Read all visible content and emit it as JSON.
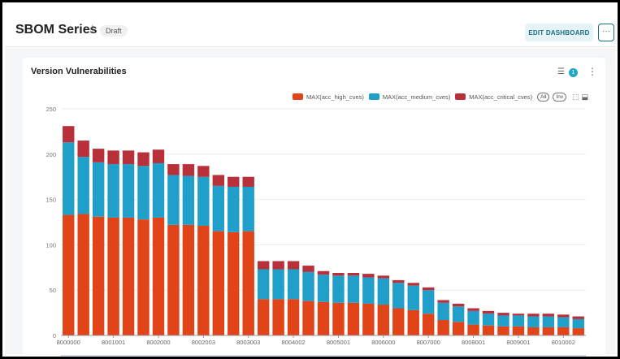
{
  "header": {
    "title": "SBOM Series",
    "star_icon": "star-icon",
    "badge": "Draft",
    "edit_label": "EDIT DASHBOARD",
    "more_label": "···"
  },
  "card": {
    "title": "Version Vulnerabilities",
    "filter_icon": "filter-icon",
    "filter_count": "1",
    "kebab": "⋮"
  },
  "legend": {
    "items": [
      {
        "label": "MAX(acc_high_cves)",
        "color": "#e04418"
      },
      {
        "label": "MAX(acc_medium_cves)",
        "color": "#1f9fc9"
      },
      {
        "label": "MAX(acc_critical_cves)",
        "color": "#b8303a"
      }
    ],
    "all_label": "All",
    "inv_label": "Inv"
  },
  "chart_data": {
    "type": "bar",
    "stacked": true,
    "ylim": [
      0,
      250
    ],
    "yticks": [
      0,
      50,
      100,
      150,
      200,
      250
    ],
    "xticks": [
      "8000000",
      "8001001",
      "8002000",
      "8002003",
      "8003003",
      "8004002",
      "8005001",
      "8006000",
      "8007000",
      "8008001",
      "8009001",
      "8010002"
    ],
    "xtick_positions": [
      0,
      3,
      6,
      9,
      12,
      15,
      18,
      21,
      24,
      27,
      30,
      33
    ],
    "series": [
      {
        "name": "MAX(acc_high_cves)",
        "color": "#e04418",
        "values": [
          133,
          134,
          131,
          130,
          130,
          128,
          130,
          122,
          122,
          121,
          115,
          114,
          115,
          40,
          40,
          40,
          38,
          37,
          36,
          36,
          35,
          34,
          30,
          28,
          24,
          17,
          15,
          12,
          11,
          10,
          10,
          9,
          9,
          9,
          8
        ]
      },
      {
        "name": "MAX(acc_medium_cves)",
        "color": "#1f9fc9",
        "values": [
          80,
          63,
          60,
          59,
          59,
          59,
          60,
          55,
          54,
          54,
          50,
          50,
          49,
          33,
          33,
          33,
          32,
          30,
          30,
          30,
          29,
          29,
          28,
          27,
          26,
          19,
          17,
          15,
          13,
          12,
          12,
          12,
          12,
          11,
          10
        ]
      },
      {
        "name": "MAX(acc_critical_cves)",
        "color": "#b8303a",
        "values": [
          18,
          18,
          15,
          15,
          15,
          15,
          15,
          12,
          13,
          12,
          12,
          11,
          11,
          9,
          9,
          9,
          7,
          4,
          3,
          3,
          4,
          3,
          3,
          3,
          3,
          3,
          3,
          3,
          3,
          3,
          2,
          3,
          3,
          3,
          3
        ]
      }
    ]
  }
}
